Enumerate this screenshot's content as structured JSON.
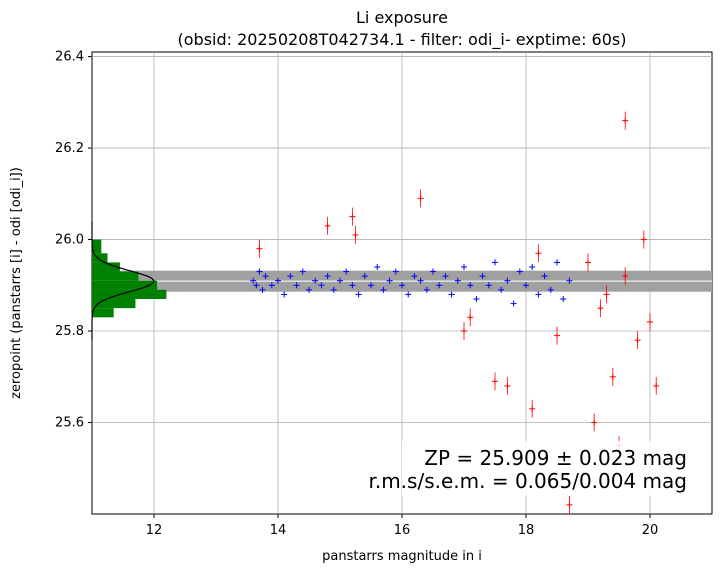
{
  "chart_data": {
    "type": "scatter",
    "title": "Li exposure",
    "subtitle": "(obsid: 20250208T042734.1 - filter: odi_i- exptime: 60s)",
    "xlabel": "panstarrs magnitude in i",
    "ylabel": "zeropoint (panstarrs [i] - odi [odi_i])",
    "xlim": [
      11.0,
      21.0
    ],
    "ylim": [
      25.4,
      26.41
    ],
    "xticks": [
      "12",
      "14",
      "16",
      "18",
      "20"
    ],
    "yticks": [
      "25.6",
      "25.8",
      "26.0",
      "26.2",
      "26.4"
    ],
    "grid": true,
    "zeropoint": 25.909,
    "zeropoint_error": 0.023,
    "annotations": [
      "ZP = 25.909 ± 0.023 mag",
      "r.m.s/s.e.m. = 0.065/0.004 mag"
    ],
    "series": [
      {
        "marker": "+",
        "color": "#0000ff",
        "points": [
          [
            13.6,
            25.91
          ],
          [
            13.65,
            25.9
          ],
          [
            13.7,
            25.93
          ],
          [
            13.75,
            25.89
          ],
          [
            13.8,
            25.92
          ],
          [
            13.9,
            25.9
          ],
          [
            14.0,
            25.91
          ],
          [
            14.1,
            25.88
          ],
          [
            14.2,
            25.92
          ],
          [
            14.3,
            25.9
          ],
          [
            14.4,
            25.93
          ],
          [
            14.5,
            25.89
          ],
          [
            14.6,
            25.91
          ],
          [
            14.7,
            25.9
          ],
          [
            14.8,
            25.92
          ],
          [
            14.9,
            25.89
          ],
          [
            15.0,
            25.91
          ],
          [
            15.1,
            25.93
          ],
          [
            15.2,
            25.9
          ],
          [
            15.3,
            25.88
          ],
          [
            15.4,
            25.92
          ],
          [
            15.5,
            25.9
          ],
          [
            15.6,
            25.94
          ],
          [
            15.7,
            25.89
          ],
          [
            15.8,
            25.91
          ],
          [
            15.9,
            25.93
          ],
          [
            16.0,
            25.9
          ],
          [
            16.1,
            25.88
          ],
          [
            16.2,
            25.92
          ],
          [
            16.3,
            25.91
          ],
          [
            16.4,
            25.89
          ],
          [
            16.5,
            25.93
          ],
          [
            16.6,
            25.9
          ],
          [
            16.7,
            25.92
          ],
          [
            16.8,
            25.88
          ],
          [
            16.9,
            25.91
          ],
          [
            17.0,
            25.94
          ],
          [
            17.1,
            25.9
          ],
          [
            17.2,
            25.87
          ],
          [
            17.3,
            25.92
          ],
          [
            17.4,
            25.9
          ],
          [
            17.5,
            25.95
          ],
          [
            17.6,
            25.89
          ],
          [
            17.7,
            25.91
          ],
          [
            17.8,
            25.86
          ],
          [
            17.9,
            25.93
          ],
          [
            18.0,
            25.9
          ],
          [
            18.1,
            25.94
          ],
          [
            18.2,
            25.88
          ],
          [
            18.3,
            25.92
          ],
          [
            18.4,
            25.89
          ],
          [
            18.5,
            25.95
          ],
          [
            18.6,
            25.87
          ],
          [
            18.7,
            25.91
          ]
        ]
      },
      {
        "marker": "+",
        "color": "#ff0000",
        "points": [
          [
            13.7,
            25.98
          ],
          [
            14.8,
            26.03
          ],
          [
            15.2,
            26.05
          ],
          [
            15.25,
            26.01
          ],
          [
            16.3,
            26.09
          ],
          [
            17.0,
            25.8
          ],
          [
            17.1,
            25.83
          ],
          [
            17.5,
            25.69
          ],
          [
            17.7,
            25.68
          ],
          [
            18.1,
            25.63
          ],
          [
            18.2,
            25.97
          ],
          [
            18.5,
            25.79
          ],
          [
            18.7,
            25.42
          ],
          [
            19.6,
            26.26
          ],
          [
            19.0,
            25.95
          ],
          [
            19.2,
            25.85
          ],
          [
            19.4,
            25.7
          ],
          [
            19.6,
            25.92
          ],
          [
            19.8,
            25.78
          ],
          [
            19.9,
            26.0
          ],
          [
            20.0,
            25.82
          ],
          [
            20.1,
            25.68
          ],
          [
            19.1,
            25.6
          ],
          [
            19.5,
            25.55
          ],
          [
            19.3,
            25.88
          ]
        ]
      }
    ],
    "histogram": {
      "color": "#008000",
      "orientation": "horizontal",
      "bins": [
        [
          25.83,
          25.85,
          0.35
        ],
        [
          25.85,
          25.87,
          0.7
        ],
        [
          25.87,
          25.89,
          1.2
        ],
        [
          25.89,
          25.91,
          1.05
        ],
        [
          25.91,
          25.93,
          0.75
        ],
        [
          25.93,
          25.95,
          0.45
        ],
        [
          25.95,
          25.97,
          0.25
        ],
        [
          25.97,
          26.0,
          0.15
        ]
      ]
    }
  }
}
